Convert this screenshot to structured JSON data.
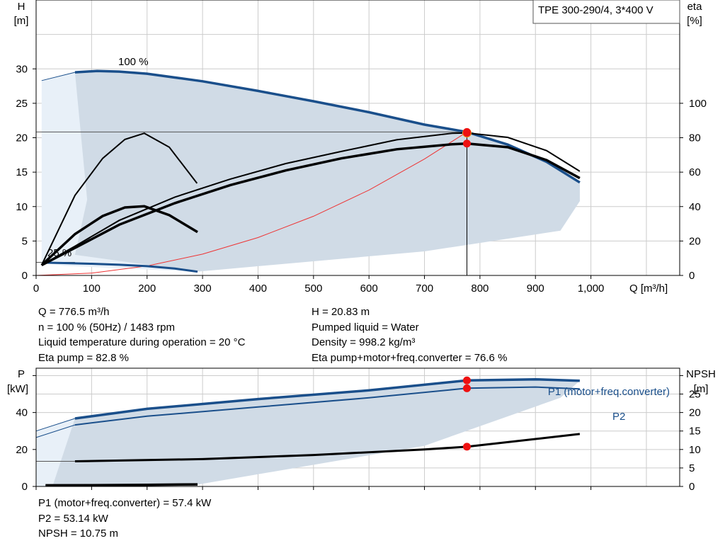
{
  "chart_data": [
    {
      "type": "line",
      "title": "TPE 300-290/4, 3*400 V",
      "xlabel": "Q [m³/h]",
      "y_left_label": [
        "H",
        "[m]"
      ],
      "y_right_label": [
        "eta",
        "[%]"
      ],
      "xlim": [
        0,
        1160
      ],
      "ylim_left": [
        0,
        40
      ],
      "ylim_right": [
        0,
        160
      ],
      "x_ticks": [
        "0",
        "100",
        "200",
        "300",
        "400",
        "500",
        "600",
        "700",
        "800",
        "900",
        "1,000"
      ],
      "y_left_ticks": [
        "0",
        "5",
        "10",
        "15",
        "20",
        "25",
        "30"
      ],
      "y_right_ticks": [
        "0",
        "20",
        "40",
        "60",
        "80",
        "100"
      ],
      "grid": true,
      "annotations": {
        "speed_max": "100 %",
        "speed_min": "25 %"
      },
      "series": [
        {
          "role": "head-100",
          "x": [
            70,
            110,
            150,
            200,
            300,
            400,
            500,
            600,
            700,
            776.5,
            850,
            920,
            980
          ],
          "y": [
            29.5,
            29.7,
            29.6,
            29.3,
            28.2,
            26.8,
            25.3,
            23.7,
            21.9,
            20.83,
            19.0,
            16.5,
            13.5
          ]
        },
        {
          "role": "head-25",
          "x": [
            17,
            50,
            100,
            150,
            200,
            250,
            291
          ],
          "y": [
            1.85,
            1.8,
            1.7,
            1.55,
            1.35,
            1.0,
            0.55
          ]
        },
        {
          "role": "eta-100-upper",
          "x": [
            10,
            70,
            150,
            250,
            350,
            450,
            550,
            650,
            750,
            776.5,
            850,
            920,
            980
          ],
          "y": [
            6,
            17,
            32,
            45.5,
            56,
            65,
            72,
            78.8,
            82.6,
            82.8,
            80.2,
            72.5,
            60.5
          ]
        },
        {
          "role": "eta-100-lower",
          "x": [
            10,
            70,
            150,
            250,
            350,
            450,
            550,
            650,
            750,
            776.5,
            850,
            920,
            980
          ],
          "y": [
            6,
            16,
            29.5,
            42,
            52.5,
            61,
            68,
            73.3,
            76.2,
            76.6,
            74.5,
            67,
            56.5
          ]
        },
        {
          "role": "eta-25-upper",
          "x": [
            10,
            70,
            120,
            160,
            195,
            240,
            290
          ],
          "y": [
            6,
            46.5,
            68,
            79,
            82.6,
            74.5,
            53.5
          ]
        },
        {
          "role": "eta-25-lower",
          "x": [
            10,
            70,
            120,
            160,
            195,
            240,
            291
          ],
          "y": [
            6,
            24,
            34.5,
            39.5,
            40.2,
            35,
            25.2
          ]
        },
        {
          "role": "system-curve",
          "x": [
            0,
            100,
            200,
            300,
            400,
            500,
            600,
            700,
            776.5
          ],
          "y": [
            0,
            0.34,
            1.38,
            3.1,
            5.5,
            8.6,
            12.4,
            16.9,
            20.83
          ]
        }
      ],
      "operating_points": [
        {
          "x": 776.5,
          "y": 20.83,
          "label": "H"
        },
        {
          "x": 776.5,
          "y": 19.15,
          "label": "eta pump+motor+freq.converter"
        },
        {
          "x": 776.5,
          "y": 20.7,
          "label": "eta pump"
        }
      ]
    },
    {
      "type": "line",
      "xlim": [
        0,
        1160
      ],
      "ylim_left": [
        0,
        64
      ],
      "ylim_right": [
        0,
        32
      ],
      "y_left_label": [
        "P",
        "[kW]"
      ],
      "y_right_label": [
        "NPSH",
        "[m]"
      ],
      "y_left_ticks": [
        "0",
        "20",
        "40"
      ],
      "y_right_ticks": [
        "0",
        "5",
        "10",
        "15",
        "20",
        "25"
      ],
      "grid": true,
      "series": [
        {
          "name": "P1 (motor+freq.converter)",
          "x": [
            70,
            200,
            400,
            600,
            776.5,
            900,
            980
          ],
          "y": [
            36.8,
            42,
            47.3,
            52,
            57.4,
            58,
            57.2
          ]
        },
        {
          "name": "P2",
          "x": [
            70,
            200,
            400,
            600,
            776.5,
            900,
            980
          ],
          "y": [
            33.3,
            38,
            43,
            48,
            53.14,
            53.8,
            52.8
          ]
        },
        {
          "role": "npsh",
          "x": [
            70,
            300,
            500,
            700,
            776.5,
            980
          ],
          "y": [
            6.8,
            7.4,
            8.5,
            10.0,
            10.75,
            14.2
          ]
        },
        {
          "role": "p-25",
          "x": [
            17,
            100,
            200,
            291
          ],
          "y": [
            0.6,
            0.7,
            0.9,
            1.1
          ]
        }
      ],
      "operating_points": [
        {
          "x": 776.5,
          "y": 57.4,
          "label": "P1"
        },
        {
          "x": 776.5,
          "y": 53.14,
          "label": "P2"
        },
        {
          "x": 776.5,
          "y": 21.5,
          "label": "NPSH"
        }
      ]
    }
  ],
  "info": {
    "q": "Q = 776.5 m³/h",
    "n": "n = 100 % (50Hz) / 1483 rpm",
    "temp": "Liquid temperature during operation = 20 °C",
    "eta_pump": "Eta pump = 82.8 %",
    "h": "H = 20.83 m",
    "liquid": "Pumped liquid = Water",
    "density": "Density = 998.2 kg/m³",
    "eta_total": "Eta pump+motor+freq.converter = 76.6 %",
    "p1": "P1 (motor+freq.converter) = 57.4 kW",
    "p2": "P2 = 53.14 kW",
    "npsh": "NPSH = 10.75 m"
  },
  "colors": {
    "curve_blue": "#1a4f8b",
    "area": "#d0dbe6",
    "area_light": "#e8f0f8",
    "point": "#ee1111",
    "grid": "#cccccc",
    "system": "#ee3333"
  }
}
